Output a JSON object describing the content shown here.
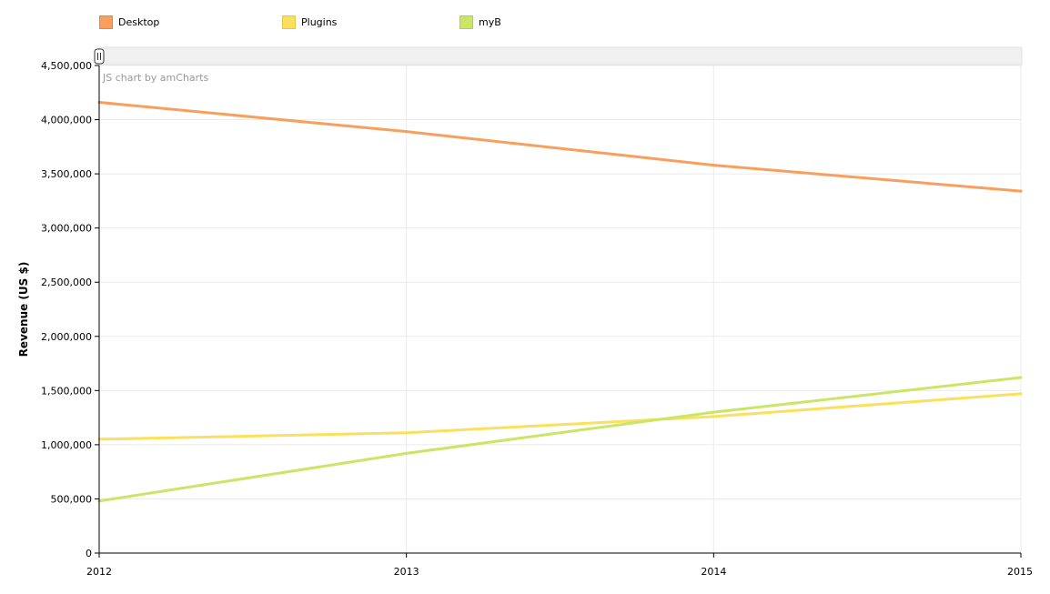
{
  "chart_data": {
    "type": "line",
    "ylabel": "Revenue (US $)",
    "credit": "JS chart by amCharts",
    "categories": [
      "2012",
      "2013",
      "2014",
      "2015"
    ],
    "ylim": [
      0,
      4500000
    ],
    "yticks": [
      0,
      500000,
      1000000,
      1500000,
      2000000,
      2500000,
      3000000,
      3500000,
      4000000,
      4500000
    ],
    "grid": true,
    "legend_position": "top-left",
    "series": [
      {
        "name": "Desktop",
        "color": "#f99f5e",
        "values": [
          4160000,
          3890000,
          3580000,
          3340000
        ]
      },
      {
        "name": "Plugins",
        "color": "#fbe05e",
        "values": [
          1050000,
          1110000,
          1260000,
          1470000
        ]
      },
      {
        "name": "myB",
        "color": "#cbe566",
        "values": [
          480000,
          920000,
          1300000,
          1620000
        ]
      }
    ]
  },
  "scrollbar": {
    "grip_icon": "grip-icon"
  }
}
